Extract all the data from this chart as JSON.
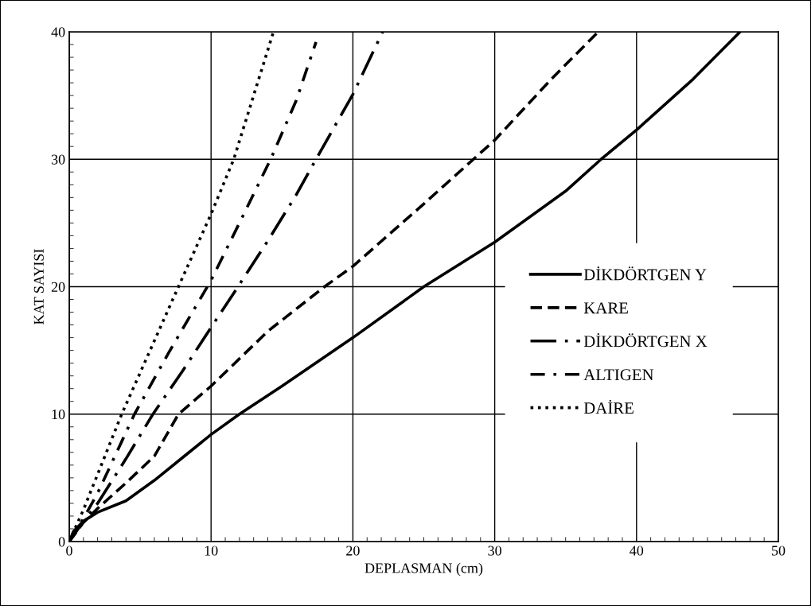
{
  "chart_data": {
    "type": "line",
    "xlabel": "DEPLASMAN (cm)",
    "ylabel": "KAT SAYISI",
    "xlim": [
      0,
      50
    ],
    "xticks": [
      0,
      10,
      20,
      30,
      40,
      50
    ],
    "ylim": [
      0,
      40
    ],
    "yticks": [
      0,
      10,
      20,
      30,
      40
    ],
    "grid": true,
    "legend": "right",
    "marker": "none",
    "series": [
      {
        "name": "DİKDÖRTGEN Y",
        "color": "#000000",
        "line_style": "solid",
        "x": [
          0,
          0.3,
          1,
          2,
          4,
          6,
          8,
          10,
          12,
          15,
          20,
          25,
          30,
          35,
          37.5,
          40,
          44,
          47.3
        ],
        "values": [
          0,
          0.8,
          1.6,
          2.3,
          3.2,
          4.8,
          6.6,
          8.4,
          10,
          12.2,
          16,
          20,
          23.5,
          27.5,
          30,
          32.3,
          36.3,
          40
        ]
      },
      {
        "name": "KARE",
        "color": "#000000",
        "line_style": "dashed",
        "x": [
          0,
          1,
          2,
          4,
          6,
          7.7,
          10,
          14,
          18,
          20,
          25,
          28.5,
          30,
          34,
          37.3
        ],
        "values": [
          0,
          1.5,
          2.6,
          4.6,
          6.7,
          10,
          12.2,
          16.5,
          20,
          21.6,
          26.5,
          30,
          31.5,
          36.3,
          40
        ]
      },
      {
        "name": "DİKDÖRTGEN X",
        "color": "#000000",
        "line_style": "longdashdot",
        "x": [
          0,
          1,
          2,
          4,
          5.9,
          8,
          10,
          11.9,
          14,
          16,
          17.4,
          20,
          22.1
        ],
        "values": [
          0,
          1.6,
          3,
          6.5,
          10,
          13.4,
          16.8,
          20,
          23.6,
          27.2,
          30,
          35.1,
          40
        ]
      },
      {
        "name": "ALTIGEN",
        "color": "#000000",
        "line_style": "dashdot",
        "x": [
          0,
          1,
          2,
          4.6,
          7,
          10,
          12,
          14.2,
          16,
          17.4
        ],
        "values": [
          0,
          1.8,
          3.8,
          10,
          14.8,
          20.5,
          25,
          30,
          34.6,
          39.2
        ]
      },
      {
        "name": "DAİRE",
        "color": "#000000",
        "line_style": "dotted",
        "x": [
          0,
          1,
          3.7,
          7.7,
          10,
          11.6,
          14.4
        ],
        "values": [
          0,
          2.5,
          10,
          20,
          25.7,
          30,
          40
        ]
      }
    ]
  }
}
